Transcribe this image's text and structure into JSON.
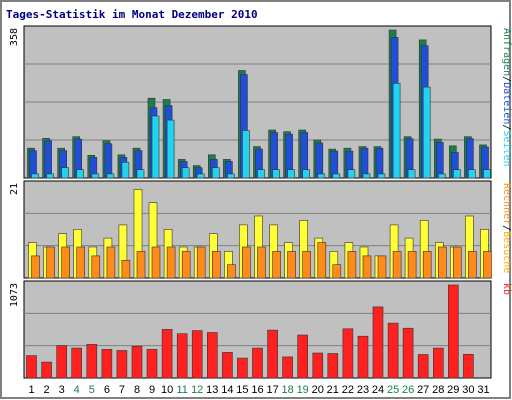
{
  "title": "Tages-Statistik im Monat Dezember 2010",
  "colors": {
    "panel": "#c0c0c0",
    "grid": "#808080",
    "anfragen": "#1b7f4a",
    "dateien": "#1f4fd8",
    "seiten": "#22d3ee",
    "besuche": "#ffff33",
    "rechner": "#ff8c1a",
    "kb": "#ff2020",
    "weekday": "#000000",
    "weekend": "#1b7f4a"
  },
  "chart_data": [
    {
      "type": "bar",
      "name": "requests",
      "ymax_label": "358",
      "ylim": [
        0,
        358
      ],
      "right_labels": [
        {
          "text": "Anfragen",
          "color": "#1b7f4a"
        },
        {
          "text": "/",
          "color": "#000000"
        },
        {
          "text": "Dateien",
          "color": "#1f4fd8"
        },
        {
          "text": "/",
          "color": "#000000"
        },
        {
          "text": "Seiten",
          "color": "#22d3ee"
        }
      ],
      "series": [
        {
          "key": "anfragen",
          "values": [
            72,
            96,
            72,
            100,
            55,
            90,
            56,
            72,
            193,
            190,
            45,
            30,
            56,
            45,
            260,
            76,
            116,
            112,
            116,
            92,
            70,
            72,
            76,
            76,
            358,
            100,
            334,
            94,
            78,
            100,
            80
          ]
        },
        {
          "key": "dateien",
          "values": [
            66,
            90,
            66,
            94,
            50,
            83,
            50,
            66,
            170,
            175,
            40,
            25,
            45,
            40,
            250,
            70,
            110,
            106,
            110,
            85,
            65,
            65,
            72,
            72,
            340,
            95,
            320,
            86,
            62,
            95,
            75
          ]
        },
        {
          "key": "seiten",
          "values": [
            10,
            10,
            25,
            20,
            10,
            10,
            38,
            20,
            150,
            140,
            25,
            10,
            25,
            10,
            115,
            20,
            20,
            20,
            20,
            10,
            10,
            20,
            10,
            10,
            229,
            20,
            220,
            10,
            20,
            20,
            20
          ]
        }
      ]
    },
    {
      "type": "bar",
      "name": "visits",
      "ymax_label": "21",
      "ylim": [
        0,
        21
      ],
      "right_labels": [
        {
          "text": "Rechner",
          "color": "#ff8c1a"
        },
        {
          "text": "/",
          "color": "#000000"
        },
        {
          "text": "Besuche",
          "color": "#ffaa00"
        }
      ],
      "series": [
        {
          "key": "besuche",
          "values": [
            8,
            7,
            10,
            11,
            7,
            9,
            12,
            20,
            17,
            11,
            7,
            7,
            10,
            6,
            12,
            14,
            12,
            8,
            13,
            9,
            6,
            8,
            7,
            5,
            12,
            9,
            13,
            8,
            7,
            14,
            11
          ]
        },
        {
          "key": "rechner",
          "values": [
            5,
            7,
            7,
            7,
            5,
            7,
            4,
            6,
            7,
            7,
            6,
            7,
            6,
            3,
            7,
            7,
            6,
            6,
            6,
            8,
            3,
            6,
            5,
            5,
            6,
            6,
            6,
            7,
            7,
            6,
            6
          ]
        }
      ]
    },
    {
      "type": "bar",
      "name": "traffic",
      "ymax_label": "1073",
      "ylim": [
        0,
        1073
      ],
      "right_labels": [
        {
          "text": "kb",
          "color": "#ff2020"
        }
      ],
      "series": [
        {
          "key": "kb",
          "values": [
            259,
            183,
            374,
            345,
            388,
            330,
            317,
            367,
            330,
            561,
            511,
            547,
            525,
            295,
            230,
            345,
            553,
            244,
            496,
            288,
            283,
            568,
            482,
            820,
            633,
            575,
            271,
            345,
            1073,
            273,
            0
          ]
        }
      ]
    }
  ],
  "days": [
    "1",
    "2",
    "3",
    "4",
    "5",
    "6",
    "7",
    "8",
    "9",
    "10",
    "11",
    "12",
    "13",
    "14",
    "15",
    "16",
    "17",
    "18",
    "19",
    "20",
    "21",
    "22",
    "23",
    "24",
    "25",
    "26",
    "27",
    "28",
    "29",
    "30",
    "31"
  ],
  "weekend_days": [
    4,
    5,
    11,
    12,
    18,
    19,
    25,
    26
  ]
}
